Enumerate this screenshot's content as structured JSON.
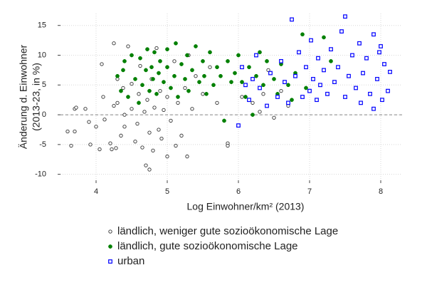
{
  "chart_data": {
    "type": "scatter",
    "xlabel": "Log Einwohner/km² (2013)",
    "ylabel": [
      "Änderung d. Einwohner",
      "(2013-23, in %)"
    ],
    "xlim": [
      3.5,
      8.3
    ],
    "xticks": [
      4,
      5,
      6,
      7,
      8
    ],
    "ylim": [
      -11,
      17
    ],
    "yticks": [
      -10,
      -5,
      0,
      5,
      10,
      15
    ],
    "grid": true,
    "hline": 0,
    "series": [
      {
        "name": "ländlich, weniger gute sozioökonomische Lage",
        "color": "#333333",
        "marker": "circle-open",
        "x": [
          3.6,
          3.65,
          3.7,
          3.7,
          3.72,
          3.85,
          3.9,
          3.92,
          4.0,
          4.05,
          4.08,
          4.1,
          4.12,
          4.2,
          4.22,
          4.25,
          4.25,
          4.28,
          4.3,
          4.3,
          4.35,
          4.38,
          4.4,
          4.4,
          4.45,
          4.5,
          4.5,
          4.55,
          4.58,
          4.6,
          4.62,
          4.65,
          4.68,
          4.7,
          4.72,
          4.75,
          4.75,
          4.78,
          4.8,
          4.82,
          4.85,
          4.88,
          4.9,
          4.92,
          4.95,
          5.0,
          5.0,
          5.05,
          5.1,
          5.12,
          5.15,
          5.2,
          5.25,
          5.28,
          5.3,
          5.35,
          5.4,
          5.5,
          5.6,
          5.7,
          5.85,
          5.85,
          6.05,
          6.2,
          6.3,
          6.35,
          6.42,
          6.5,
          6.6,
          6.7
        ],
        "values": [
          -2.8,
          -5.2,
          -2.8,
          1.0,
          1.2,
          1.0,
          -1.2,
          -5.0,
          -2.0,
          -5.8,
          8.5,
          3.0,
          -0.8,
          -4.8,
          -5.8,
          12.0,
          1.5,
          -5.6,
          6.0,
          2.0,
          -3.5,
          4.5,
          0.0,
          -2.0,
          11.5,
          5.2,
          1.0,
          -4.5,
          -1.5,
          3.5,
          8.2,
          -5.5,
          0.5,
          -8.5,
          2.5,
          -9.2,
          -3.0,
          6.0,
          -6.0,
          1.2,
          11.2,
          -2.5,
          4.0,
          -4.0,
          0.8,
          -7.0,
          3.0,
          -1.0,
          9.0,
          -5.2,
          2.0,
          -3.5,
          4.5,
          -7.0,
          10.0,
          1.0,
          6.5,
          3.5,
          8.0,
          2.0,
          -4.8,
          -5.2,
          3.0,
          2.0,
          0.5,
          3.5,
          7.5,
          -0.5,
          4.0,
          1.5
        ]
      },
      {
        "name": "ländlich, gute sozioökonomische Lage",
        "color": "#008000",
        "marker": "circle",
        "x": [
          4.3,
          4.35,
          4.38,
          4.4,
          4.45,
          4.5,
          4.55,
          4.6,
          4.62,
          4.65,
          4.7,
          4.72,
          4.75,
          4.78,
          4.8,
          4.82,
          4.85,
          4.88,
          4.9,
          4.95,
          5.0,
          5.0,
          5.05,
          5.1,
          5.12,
          5.15,
          5.2,
          5.25,
          5.28,
          5.3,
          5.35,
          5.4,
          5.45,
          5.5,
          5.52,
          5.55,
          5.6,
          5.65,
          5.7,
          5.75,
          5.8,
          5.85,
          5.9,
          5.95,
          6.0,
          6.05,
          6.1,
          6.15,
          6.2,
          6.25,
          6.3,
          6.35,
          6.4,
          6.5,
          6.55,
          6.6,
          6.7,
          6.75,
          6.8,
          6.9,
          6.95,
          7.2,
          7.3
        ],
        "values": [
          6.5,
          4.0,
          7.5,
          9.0,
          3.0,
          10.0,
          6.0,
          2.0,
          9.5,
          5.0,
          7.5,
          11.0,
          4.0,
          8.0,
          6.0,
          10.5,
          3.5,
          7.0,
          9.0,
          5.5,
          8.0,
          11.0,
          4.5,
          6.5,
          12.0,
          3.0,
          8.5,
          6.0,
          10.0,
          4.0,
          7.5,
          11.5,
          5.5,
          9.0,
          6.5,
          3.5,
          10.5,
          5.0,
          8.0,
          6.5,
          -1.0,
          9.0,
          5.5,
          7.0,
          10.0,
          5.5,
          3.0,
          8.0,
          0.0,
          6.5,
          10.5,
          5.0,
          9.0,
          6.0,
          3.5,
          8.5,
          5.0,
          2.5,
          7.0,
          13.5,
          4.5,
          13.0,
          9.0
        ]
      },
      {
        "name": "urban",
        "color": "#0000ff",
        "marker": "square-open",
        "x": [
          6.0,
          6.05,
          6.1,
          6.15,
          6.2,
          6.25,
          6.3,
          6.4,
          6.45,
          6.55,
          6.6,
          6.65,
          6.7,
          6.75,
          6.8,
          6.85,
          6.9,
          6.95,
          7.0,
          7.02,
          7.05,
          7.1,
          7.12,
          7.15,
          7.2,
          7.25,
          7.3,
          7.35,
          7.4,
          7.45,
          7.5,
          7.5,
          7.55,
          7.6,
          7.65,
          7.7,
          7.72,
          7.75,
          7.8,
          7.85,
          7.9,
          7.9,
          7.95,
          8.0,
          8.02,
          8.05,
          8.1,
          7.98,
          8.13
        ],
        "values": [
          -1.8,
          8.0,
          5.0,
          2.5,
          6.0,
          10.0,
          4.5,
          1.5,
          7.0,
          3.0,
          9.0,
          5.5,
          2.0,
          16.0,
          6.5,
          10.5,
          3.0,
          8.0,
          4.0,
          12.5,
          6.0,
          2.5,
          9.5,
          5.0,
          7.5,
          3.5,
          11.0,
          5.5,
          8.0,
          14.0,
          16.5,
          3.0,
          6.5,
          10.0,
          4.5,
          12.0,
          2.0,
          7.0,
          9.5,
          3.5,
          13.5,
          1.0,
          6.0,
          11.5,
          2.5,
          8.5,
          4.0,
          10.5,
          7.2
        ]
      }
    ]
  }
}
